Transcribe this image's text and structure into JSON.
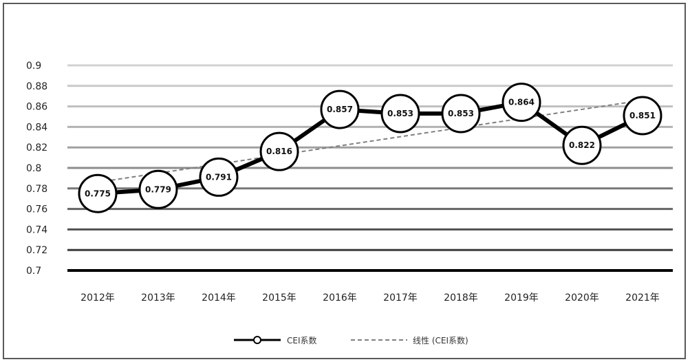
{
  "chart_data": {
    "type": "line",
    "categories": [
      "2012年",
      "2013年",
      "2014年",
      "2015年",
      "2016年",
      "2017年",
      "2018年",
      "2019年",
      "2020年",
      "2021年"
    ],
    "series": [
      {
        "name": "CEI系数",
        "values": [
          0.775,
          0.779,
          0.791,
          0.816,
          0.857,
          0.853,
          0.853,
          0.864,
          0.822,
          0.851
        ],
        "labels": [
          "0.775",
          "0.779",
          "0.791",
          "0.816",
          "0.857",
          "0.853",
          "0.853",
          "0.864",
          "0.822",
          "0.851"
        ]
      }
    ],
    "trendline": {
      "name": "线性 (CEI系数)",
      "start": 0.786,
      "end": 0.866
    },
    "ylim": [
      0.7,
      0.9
    ],
    "yticks": [
      "0.7",
      "0.72",
      "0.74",
      "0.76",
      "0.78",
      "0.8",
      "0.82",
      "0.84",
      "0.86",
      "0.88",
      "0.9"
    ],
    "grid": true,
    "legend_position": "bottom",
    "colors": {
      "series": "#000000",
      "trend": "#7f7f7f",
      "marker_fill": "#ffffff"
    }
  }
}
